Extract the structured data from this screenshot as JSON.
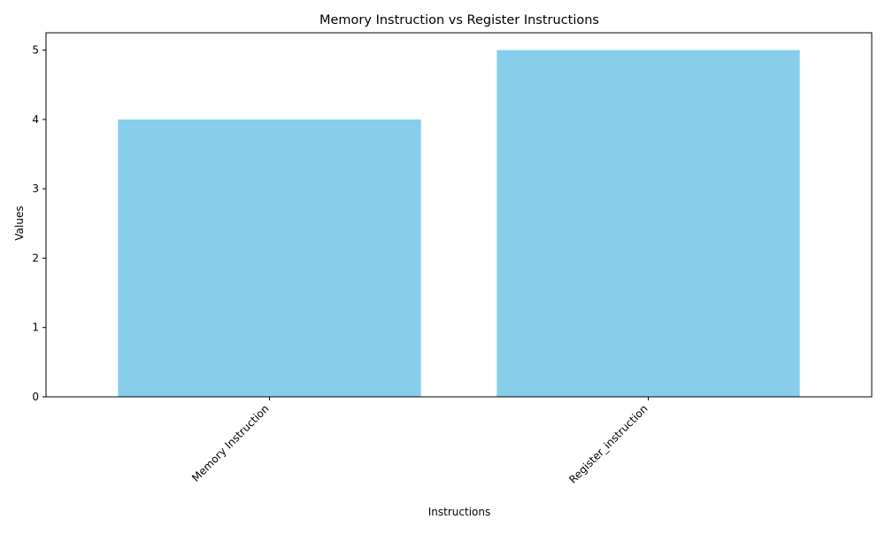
{
  "chart_data": {
    "type": "bar",
    "title": "Memory Instruction vs Register Instructions",
    "xlabel": "Instructions",
    "ylabel": "Values",
    "categories": [
      "Memory Instruction",
      "Register_instruction"
    ],
    "values": [
      4,
      5
    ],
    "ylim": [
      0,
      5.25
    ],
    "yticks": [
      0,
      1,
      2,
      3,
      4,
      5
    ],
    "bar_color": "#87CEEB",
    "grid": false,
    "legend": "none"
  }
}
